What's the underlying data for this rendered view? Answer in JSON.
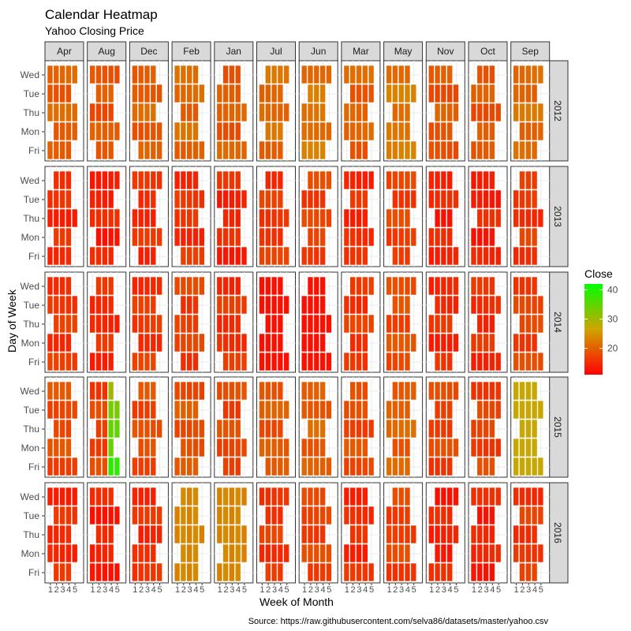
{
  "chart_data": {
    "type": "heatmap",
    "title": "Calendar Heatmap",
    "subtitle": "Yahoo Closing Price",
    "xlabel": "Week of Month",
    "ylabel": "Day of Week",
    "caption": "Source: https://raw.githubusercontent.com/selva86/datasets/master/yahoo.csv",
    "months": [
      "Apr",
      "Aug",
      "Dec",
      "Feb",
      "Jan",
      "Jul",
      "Jun",
      "Mar",
      "May",
      "Nov",
      "Oct",
      "Sep"
    ],
    "years": [
      "2012",
      "2013",
      "2014",
      "2015",
      "2016"
    ],
    "days": [
      "Wed",
      "Tue",
      "Thu",
      "Mon",
      "Fri"
    ],
    "x_ticks": [
      "1",
      "2",
      "3",
      "4",
      "5"
    ],
    "legend": {
      "title": "Close",
      "position": "right",
      "range": [
        11,
        42
      ],
      "ticks": [
        20,
        30,
        40
      ],
      "colors": [
        "#ff0000",
        "#00ff00"
      ]
    },
    "grid": true,
    "cells": [
      [
        [
          "*********",
          "*********",
          "*******-**",
          "*******-**",
          "*******-**"
        ],
        [
          "-*****-**",
          "-********",
          "-*****-*-",
          "-********",
          "-********"
        ],
        [
          "-********",
          "-*****-*-",
          "*******-*-",
          "-********",
          "-********"
        ],
        [
          "***********",
          "***********",
          "*********",
          "-********",
          "-*****-**"
        ],
        [
          "-*****-**",
          "*********",
          "*******-*-",
          "*******-*-",
          "*******-*-"
        ],
        [
          "-*****-**",
          "-********",
          "-*****-**",
          "*******-**",
          "*******-**"
        ],
        [
          "-********",
          "-********",
          "*****-*-*-",
          "-********",
          "-*****-**"
        ],
        [
          "*********",
          "-********",
          "-*****-**",
          "*******-**",
          "-*****-**"
        ],
        [
          "-********",
          "*********",
          "-*****-**",
          "-********",
          "*******-*-"
        ],
        [
          "-*****-**",
          "*******-**",
          "-*****-**",
          "*********",
          "-*****-**"
        ],
        [
          "-********",
          "*******-**",
          "-*****-**",
          "-********",
          "*******-**"
        ],
        [
          "-********",
          "-*****-*-",
          "*********",
          "-*****-**",
          "*******-**"
        ]
      ]
    ]
  }
}
